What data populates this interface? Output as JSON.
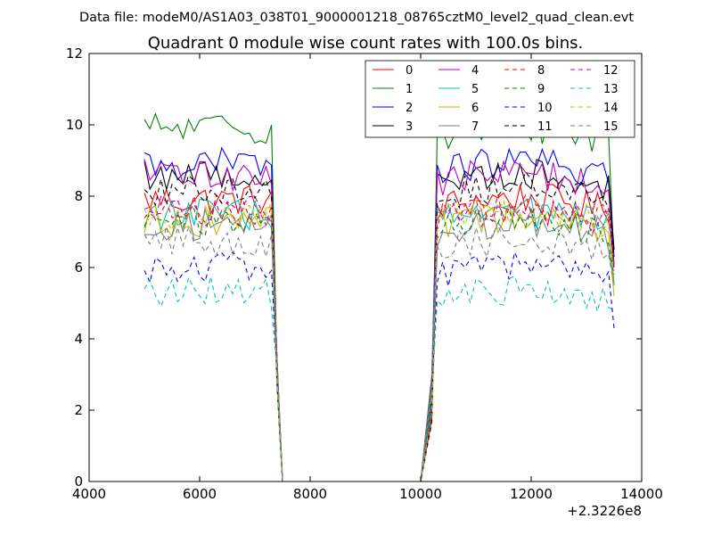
{
  "chart_data": {
    "type": "line",
    "suptitle": "Data file: modeM0/AS1A03_038T01_9000001218_08765cztM0_level2_quad_clean.evt",
    "title": "Quadrant 0 module wise count rates with 100.0s bins.",
    "xlabel": "",
    "ylabel": "",
    "xlim": [
      4000,
      14000
    ],
    "ylim": [
      0,
      12
    ],
    "x_offset_label": "+2.3226e8",
    "x_ticks": [
      4000,
      6000,
      8000,
      10000,
      12000,
      14000
    ],
    "x_tick_labels": [
      "4000",
      "6000",
      "8000",
      "10000",
      "12000",
      "14000"
    ],
    "y_ticks": [
      0,
      2,
      4,
      6,
      8,
      10,
      12
    ],
    "y_tick_labels": [
      "0",
      "2",
      "4",
      "6",
      "8",
      "10",
      "12"
    ],
    "grid": false,
    "legend_position": "top-right",
    "series": [
      {
        "name": "0",
        "color": "#ff0000",
        "dashed": false,
        "level": 7.9,
        "end": 6.3
      },
      {
        "name": "1",
        "color": "#008000",
        "dashed": false,
        "level": 9.9,
        "end": 6.0
      },
      {
        "name": "2",
        "color": "#0000ff",
        "dashed": false,
        "level": 8.9,
        "end": 6.3
      },
      {
        "name": "3",
        "color": "#000000",
        "dashed": false,
        "level": 8.6,
        "end": 6.5
      },
      {
        "name": "4",
        "color": "#bf00bf",
        "dashed": false,
        "level": 8.6,
        "end": 6.0
      },
      {
        "name": "5",
        "color": "#00bfbf",
        "dashed": false,
        "level": 7.5,
        "end": 5.5
      },
      {
        "name": "6",
        "color": "#bfbf00",
        "dashed": false,
        "level": 7.3,
        "end": 5.2
      },
      {
        "name": "7",
        "color": "#7f7f7f",
        "dashed": false,
        "level": 7.2,
        "end": 5.6
      },
      {
        "name": "8",
        "color": "#ff0000",
        "dashed": true,
        "level": 7.6,
        "end": 6.0
      },
      {
        "name": "9",
        "color": "#008000",
        "dashed": true,
        "level": 7.3,
        "end": 5.8
      },
      {
        "name": "10",
        "color": "#0000ff",
        "dashed": true,
        "level": 6.0,
        "end": 4.3
      },
      {
        "name": "11",
        "color": "#000000",
        "dashed": true,
        "level": 8.2,
        "end": 6.3
      },
      {
        "name": "12",
        "color": "#bf00bf",
        "dashed": true,
        "level": 7.6,
        "end": 5.9
      },
      {
        "name": "13",
        "color": "#00bfbf",
        "dashed": true,
        "level": 5.3,
        "end": 4.8
      },
      {
        "name": "14",
        "color": "#bfbf00",
        "dashed": true,
        "level": 7.5,
        "end": 5.5
      },
      {
        "name": "15",
        "color": "#7f7f7f",
        "dashed": true,
        "level": 6.7,
        "end": 5.5
      }
    ],
    "segment1": {
      "x_start": 5000,
      "x_end": 7300,
      "x_drop": 7500
    },
    "segment2": {
      "x_rise": 10100,
      "x_start": 10300,
      "x_end": 13400,
      "x_last": 13500
    },
    "bin_width": 100
  }
}
